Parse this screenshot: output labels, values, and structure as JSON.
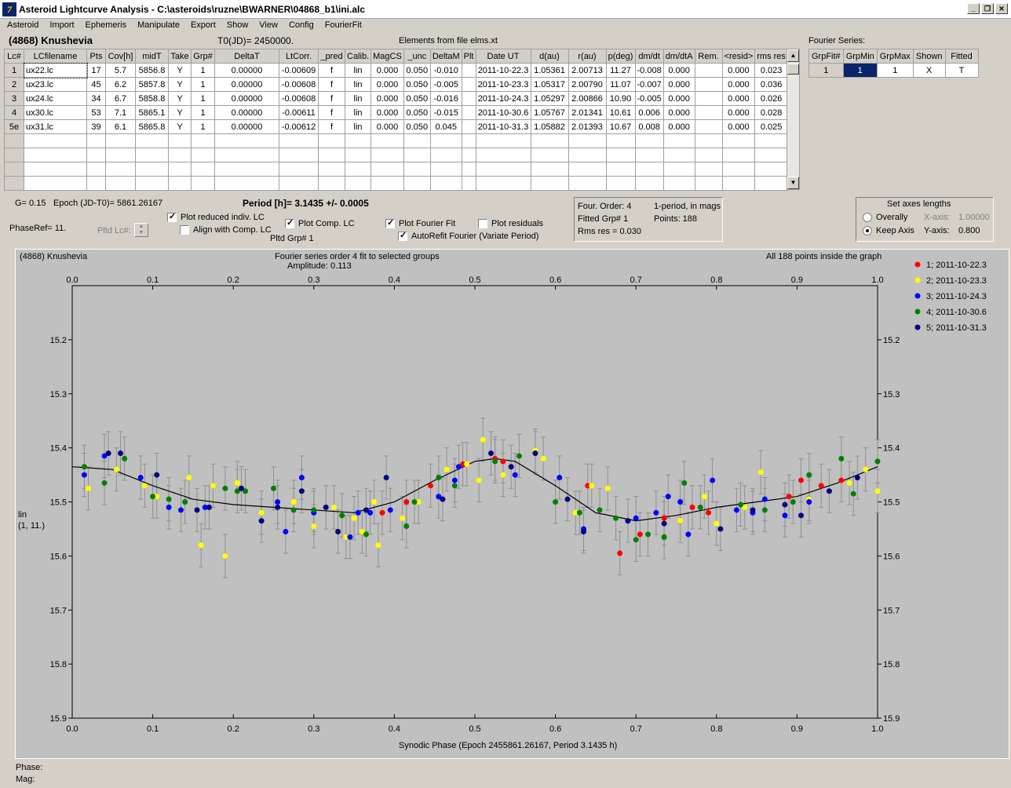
{
  "window": {
    "title": "Asteroid Lightcurve Analysis - C:\\asteroids\\ruzne\\BWARNER\\04868_b1\\ini.alc",
    "icon": "7"
  },
  "menu": [
    "Asteroid",
    "Import",
    "Ephemeris",
    "Manipulate",
    "Export",
    "Show",
    "View",
    "Config",
    "FourierFit"
  ],
  "header": {
    "asteroid": "(4868) Knushevia",
    "t0": "T0(JD)= 2450000.",
    "elements": "Elements from file elms.xt",
    "fourier_label": "Fourier Series:"
  },
  "table": {
    "columns": [
      "Lc#",
      "LCfilename",
      "Pts",
      "Cov[h]",
      "midT",
      "Take",
      "Grp#",
      "DeltaT",
      "LtCorr.",
      "_pred",
      "Calib.",
      "MagCS",
      "_unc",
      "DeltaM",
      "Plt",
      "Date UT",
      "d(au)",
      "r(au)",
      "p(deg)",
      "dm/dt",
      "dm/dtA",
      "Rem.",
      "<resid>",
      "rms res"
    ],
    "rows": [
      [
        "1",
        "ux22.lc",
        "17",
        "5.7",
        "5856.8",
        "Y",
        "1",
        "0.00000",
        "-0.00609",
        "f",
        "lin",
        "0.000",
        "0.050",
        "-0.010",
        "",
        "2011-10-22.3",
        "1.05361",
        "2.00713",
        "11.27",
        "-0.008",
        "0.000",
        "",
        "0.000",
        "0.023"
      ],
      [
        "2",
        "ux23.lc",
        "45",
        "6.2",
        "5857.8",
        "Y",
        "1",
        "0.00000",
        "-0.00608",
        "f",
        "lin",
        "0.000",
        "0.050",
        "-0.005",
        "",
        "2011-10-23.3",
        "1.05317",
        "2.00790",
        "11.07",
        "-0.007",
        "0.000",
        "",
        "0.000",
        "0.036"
      ],
      [
        "3",
        "ux24.lc",
        "34",
        "6.7",
        "5858.8",
        "Y",
        "1",
        "0.00000",
        "-0.00608",
        "f",
        "lin",
        "0.000",
        "0.050",
        "-0.016",
        "",
        "2011-10-24.3",
        "1.05297",
        "2.00866",
        "10.90",
        "-0.005",
        "0.000",
        "",
        "0.000",
        "0.026"
      ],
      [
        "4",
        "ux30.lc",
        "53",
        "7.1",
        "5865.1",
        "Y",
        "1",
        "0.00000",
        "-0.00611",
        "f",
        "lin",
        "0.000",
        "0.050",
        "-0.015",
        "",
        "2011-10-30.6",
        "1.05767",
        "2.01341",
        "10.61",
        "0.006",
        "0.000",
        "",
        "0.000",
        "0.028"
      ],
      [
        "5e",
        "ux31.lc",
        "39",
        "6.1",
        "5865.8",
        "Y",
        "1",
        "0.00000",
        "-0.00612",
        "f",
        "lin",
        "0.000",
        "0.050",
        "0.045",
        "",
        "2011-10-31.3",
        "1.05882",
        "2.01393",
        "10.67",
        "0.008",
        "0.000",
        "",
        "0.000",
        "0.025"
      ]
    ],
    "empty_rows": 4
  },
  "fourier_table": {
    "columns": [
      "GrpFit#",
      "GrpMin",
      "GrpMax",
      "Shown",
      "Fitted"
    ],
    "row": [
      "1",
      "1",
      "1",
      "X",
      "T"
    ]
  },
  "controls": {
    "g": "G= 0.15",
    "epoch": "Epoch (JD-T0)= 5861.26167",
    "period": "Period [h]= 3.1435 +/- 0.0005",
    "phaseref": "PhaseRef= 11.",
    "pltd_lc": "Pltd Lc#:",
    "plot_reduced": "Plot reduced indiv. LC",
    "align_comp": "Align with Comp. LC",
    "plot_comp": "Plot Comp. LC",
    "pltd_grp": "Pltd Grp#  1",
    "plot_fourier": "Plot Fourier Fit",
    "autorefit": "AutoRefit Fourier (Variate Period)",
    "plot_residuals": "Plot residuals",
    "info": {
      "order": "Four. Order:  4",
      "mode": "1-period, in mags",
      "fitted": "Fitted Grp# 1",
      "points": "Points: 188",
      "rms": "Rms res     = 0.030"
    },
    "axes": {
      "title": "Set axes lengths",
      "overally": "Overally",
      "keep": "Keep Axis",
      "xaxis": "X-axis:",
      "xval": "1.00000",
      "yaxis": "Y-axis:",
      "yval": "0.800"
    }
  },
  "plot": {
    "name": "(4868) Knushevia",
    "fit_title": "Fourier series order 4 fit to selected groups",
    "amplitude": "Amplitude: 0.113",
    "points_note": "All 188 points inside the graph",
    "ylabel1": "lin",
    "ylabel2": "(1, 11.)",
    "xlabel": "Synodic Phase (Epoch 2455861.26167, Period 3.1435 h)",
    "legend": [
      {
        "label": "1; 2011-10-22.3",
        "color": "#ff0000"
      },
      {
        "label": "2; 2011-10-23.3",
        "color": "#ffff00"
      },
      {
        "label": "3; 2011-10-24.3",
        "color": "#0000ff"
      },
      {
        "label": "4; 2011-10-30.6",
        "color": "#008000"
      },
      {
        "label": "5; 2011-10-31.3",
        "color": "#000080"
      }
    ]
  },
  "chart_data": {
    "type": "scatter",
    "xlim": [
      0,
      1.0
    ],
    "ylim": [
      15.9,
      15.1
    ],
    "xticks": [
      "0.0",
      "0.1",
      "0.2",
      "0.3",
      "0.4",
      "0.5",
      "0.6",
      "0.7",
      "0.8",
      "0.9",
      "1.0"
    ],
    "yticks": [
      "15.2",
      "15.3",
      "15.4",
      "15.5",
      "15.6",
      "15.7",
      "15.8",
      "15.9"
    ],
    "fit_curve": {
      "x": [
        0.0,
        0.05,
        0.1,
        0.15,
        0.2,
        0.25,
        0.3,
        0.35,
        0.4,
        0.45,
        0.5,
        0.525,
        0.55,
        0.6,
        0.65,
        0.7,
        0.75,
        0.8,
        0.85,
        0.9,
        0.95,
        1.0
      ],
      "y": [
        15.435,
        15.44,
        15.47,
        15.495,
        15.505,
        15.51,
        15.515,
        15.52,
        15.5,
        15.46,
        15.425,
        15.42,
        15.425,
        15.47,
        15.52,
        15.535,
        15.525,
        15.51,
        15.5,
        15.49,
        15.465,
        15.435
      ]
    },
    "series": [
      {
        "name": "1; 2011-10-22.3",
        "color": "#ff0000",
        "points": [
          [
            0.385,
            15.52
          ],
          [
            0.415,
            15.5
          ],
          [
            0.445,
            15.47
          ],
          [
            0.485,
            15.43
          ],
          [
            0.525,
            15.42
          ],
          [
            0.535,
            15.425
          ],
          [
            0.64,
            15.47
          ],
          [
            0.68,
            15.595
          ],
          [
            0.705,
            15.56
          ],
          [
            0.735,
            15.53
          ],
          [
            0.77,
            15.51
          ],
          [
            0.79,
            15.52
          ],
          [
            0.89,
            15.49
          ],
          [
            0.905,
            15.46
          ],
          [
            0.93,
            15.47
          ],
          [
            0.955,
            15.46
          ]
        ]
      },
      {
        "name": "2; 2011-10-23.3",
        "color": "#ffff00",
        "points": [
          [
            0.02,
            15.475
          ],
          [
            0.055,
            15.44
          ],
          [
            0.09,
            15.47
          ],
          [
            0.105,
            15.49
          ],
          [
            0.145,
            15.455
          ],
          [
            0.16,
            15.58
          ],
          [
            0.175,
            15.47
          ],
          [
            0.19,
            15.6
          ],
          [
            0.205,
            15.465
          ],
          [
            0.235,
            15.52
          ],
          [
            0.275,
            15.5
          ],
          [
            0.3,
            15.545
          ],
          [
            0.325,
            15.51
          ],
          [
            0.34,
            15.565
          ],
          [
            0.35,
            15.53
          ],
          [
            0.36,
            15.555
          ],
          [
            0.375,
            15.5
          ],
          [
            0.38,
            15.58
          ],
          [
            0.41,
            15.53
          ],
          [
            0.43,
            15.5
          ],
          [
            0.465,
            15.44
          ],
          [
            0.49,
            15.43
          ],
          [
            0.505,
            15.46
          ],
          [
            0.51,
            15.385
          ],
          [
            0.535,
            15.45
          ],
          [
            0.575,
            15.405
          ],
          [
            0.585,
            15.42
          ],
          [
            0.625,
            15.52
          ],
          [
            0.645,
            15.47
          ],
          [
            0.665,
            15.475
          ],
          [
            0.755,
            15.535
          ],
          [
            0.785,
            15.49
          ],
          [
            0.8,
            15.54
          ],
          [
            0.835,
            15.51
          ],
          [
            0.855,
            15.445
          ],
          [
            0.915,
            15.495
          ],
          [
            0.965,
            15.465
          ],
          [
            0.985,
            15.44
          ],
          [
            1.0,
            15.48
          ]
        ]
      },
      {
        "name": "3; 2011-10-24.3",
        "color": "#0000ff",
        "points": [
          [
            0.015,
            15.45
          ],
          [
            0.04,
            15.415
          ],
          [
            0.085,
            15.455
          ],
          [
            0.12,
            15.51
          ],
          [
            0.135,
            15.515
          ],
          [
            0.165,
            15.51
          ],
          [
            0.255,
            15.5
          ],
          [
            0.265,
            15.555
          ],
          [
            0.285,
            15.455
          ],
          [
            0.3,
            15.52
          ],
          [
            0.345,
            15.565
          ],
          [
            0.355,
            15.52
          ],
          [
            0.37,
            15.52
          ],
          [
            0.395,
            15.515
          ],
          [
            0.455,
            15.49
          ],
          [
            0.475,
            15.46
          ],
          [
            0.48,
            15.435
          ],
          [
            0.55,
            15.45
          ],
          [
            0.605,
            15.455
          ],
          [
            0.635,
            15.55
          ],
          [
            0.7,
            15.53
          ],
          [
            0.725,
            15.52
          ],
          [
            0.74,
            15.49
          ],
          [
            0.755,
            15.5
          ],
          [
            0.765,
            15.56
          ],
          [
            0.795,
            15.46
          ],
          [
            0.825,
            15.515
          ],
          [
            0.845,
            15.52
          ],
          [
            0.86,
            15.495
          ],
          [
            0.885,
            15.525
          ],
          [
            0.915,
            15.5
          ]
        ]
      },
      {
        "name": "4; 2011-10-30.6",
        "color": "#008000",
        "points": [
          [
            0.015,
            15.435
          ],
          [
            0.04,
            15.465
          ],
          [
            0.065,
            15.42
          ],
          [
            0.1,
            15.49
          ],
          [
            0.12,
            15.495
          ],
          [
            0.14,
            15.5
          ],
          [
            0.19,
            15.475
          ],
          [
            0.205,
            15.48
          ],
          [
            0.215,
            15.48
          ],
          [
            0.25,
            15.475
          ],
          [
            0.275,
            15.515
          ],
          [
            0.3,
            15.515
          ],
          [
            0.335,
            15.525
          ],
          [
            0.365,
            15.56
          ],
          [
            0.415,
            15.545
          ],
          [
            0.425,
            15.5
          ],
          [
            0.455,
            15.455
          ],
          [
            0.475,
            15.47
          ],
          [
            0.525,
            15.425
          ],
          [
            0.555,
            15.415
          ],
          [
            0.6,
            15.5
          ],
          [
            0.63,
            15.52
          ],
          [
            0.655,
            15.515
          ],
          [
            0.675,
            15.53
          ],
          [
            0.7,
            15.57
          ],
          [
            0.715,
            15.56
          ],
          [
            0.735,
            15.565
          ],
          [
            0.76,
            15.465
          ],
          [
            0.78,
            15.51
          ],
          [
            0.83,
            15.505
          ],
          [
            0.86,
            15.515
          ],
          [
            0.895,
            15.5
          ],
          [
            0.915,
            15.45
          ],
          [
            0.955,
            15.42
          ],
          [
            0.97,
            15.485
          ],
          [
            1.0,
            15.425
          ]
        ]
      },
      {
        "name": "5; 2011-10-31.3",
        "color": "#000080",
        "points": [
          [
            0.045,
            15.41
          ],
          [
            0.06,
            15.41
          ],
          [
            0.105,
            15.45
          ],
          [
            0.155,
            15.515
          ],
          [
            0.17,
            15.51
          ],
          [
            0.21,
            15.475
          ],
          [
            0.235,
            15.535
          ],
          [
            0.255,
            15.51
          ],
          [
            0.285,
            15.48
          ],
          [
            0.315,
            15.51
          ],
          [
            0.33,
            15.555
          ],
          [
            0.365,
            15.515
          ],
          [
            0.39,
            15.455
          ],
          [
            0.46,
            15.495
          ],
          [
            0.52,
            15.41
          ],
          [
            0.545,
            15.435
          ],
          [
            0.575,
            15.41
          ],
          [
            0.615,
            15.495
          ],
          [
            0.635,
            15.555
          ],
          [
            0.69,
            15.535
          ],
          [
            0.735,
            15.54
          ],
          [
            0.805,
            15.55
          ],
          [
            0.845,
            15.515
          ],
          [
            0.885,
            15.505
          ],
          [
            0.905,
            15.525
          ],
          [
            0.94,
            15.48
          ],
          [
            0.975,
            15.455
          ]
        ]
      }
    ]
  }
}
